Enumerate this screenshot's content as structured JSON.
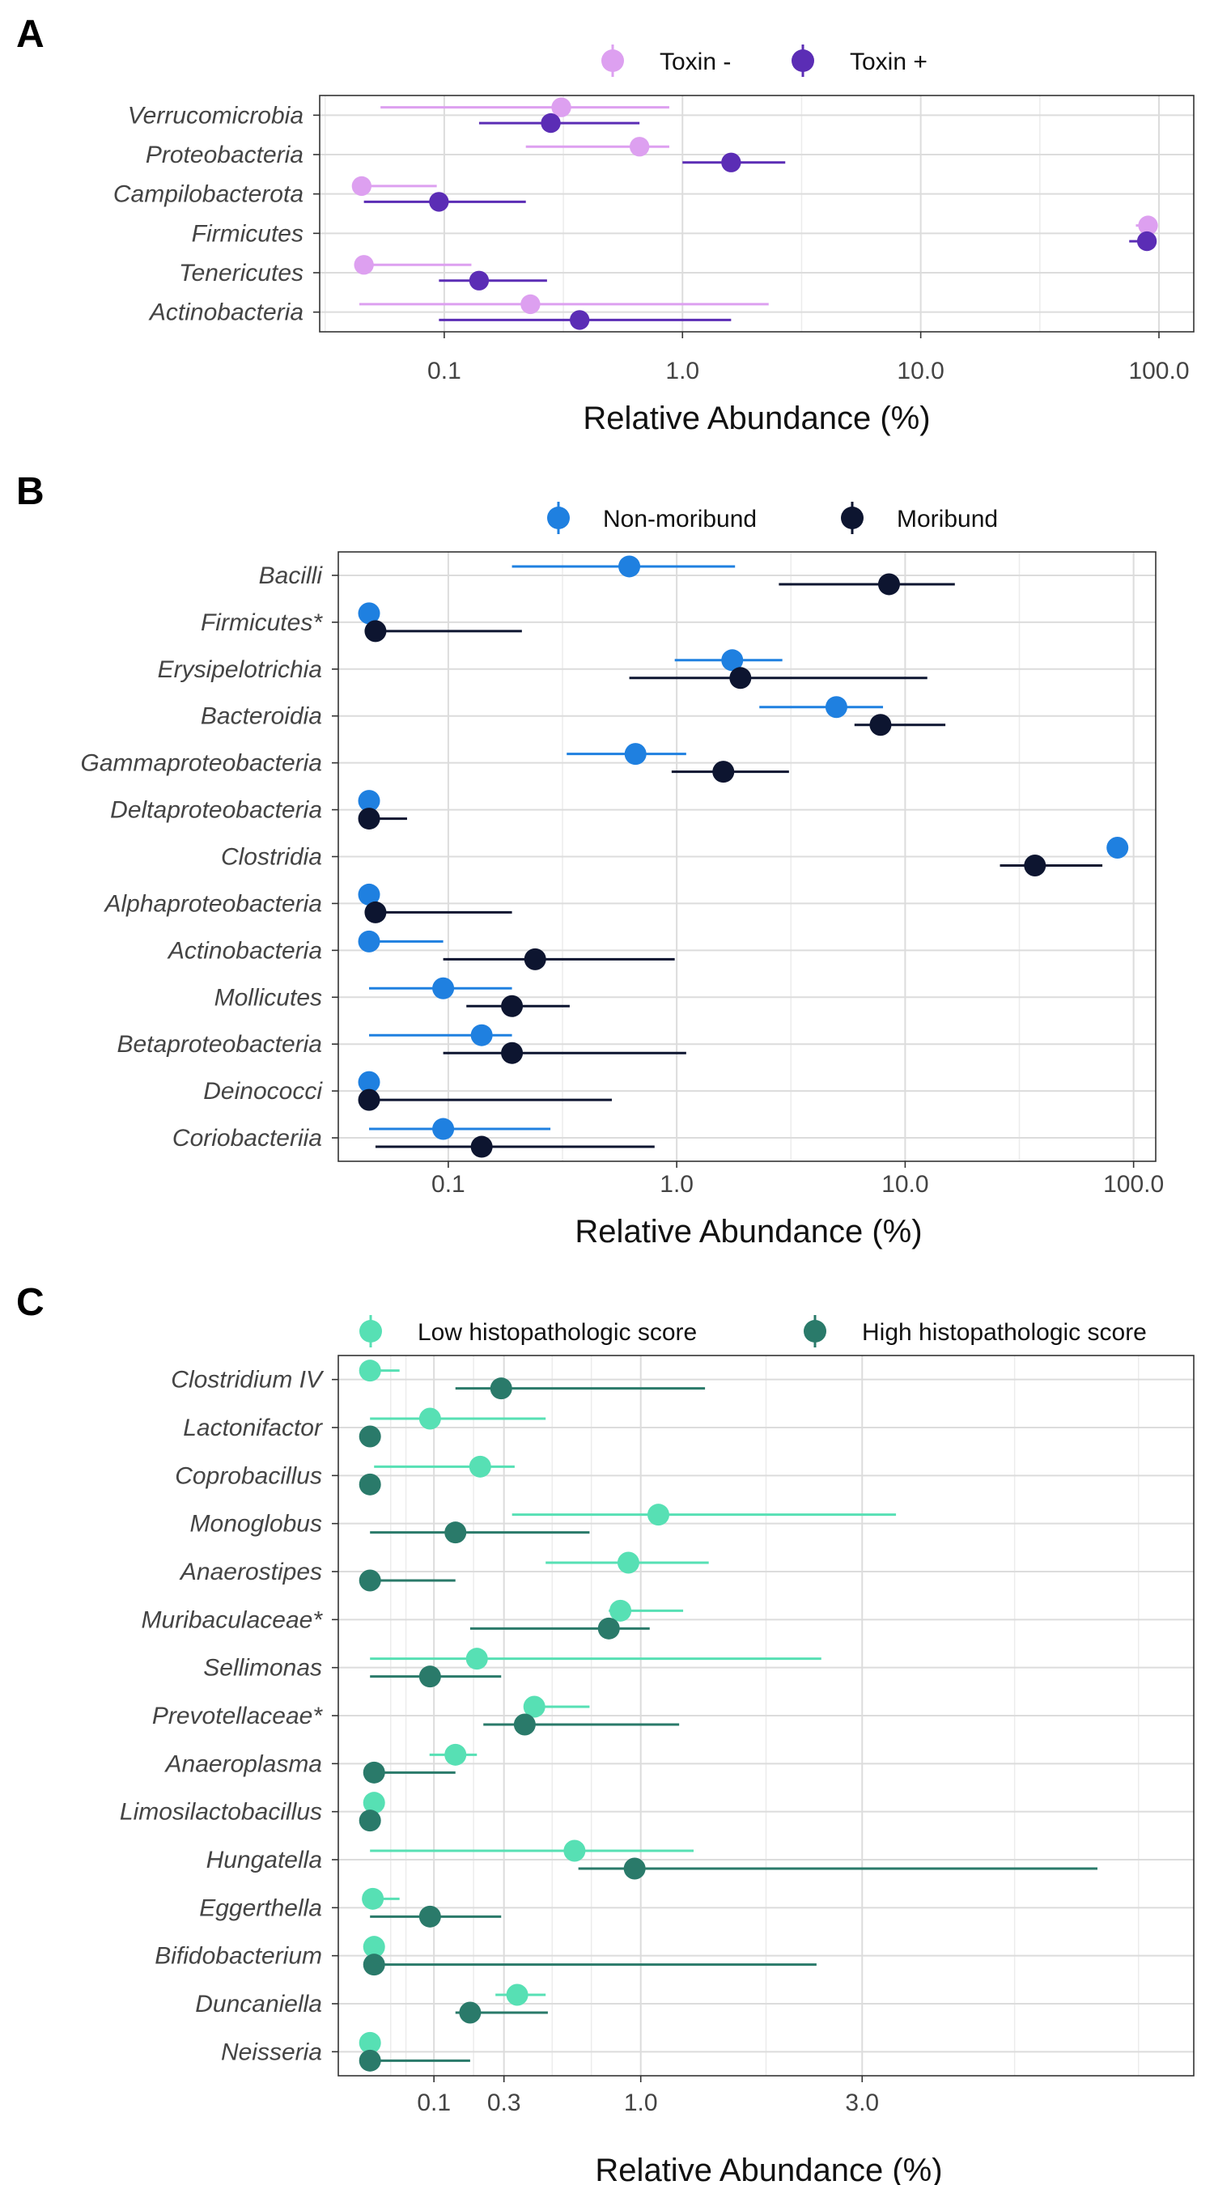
{
  "chart_data": [
    {
      "type": "scatter",
      "panel": "A",
      "xlabel": "Relative Abundance (%)",
      "xscale": "log",
      "xlim": [
        0.03,
        140
      ],
      "xticks": [
        0.1,
        1,
        10,
        100
      ],
      "xtick_labels": [
        "0.1",
        "1.0",
        "10.0",
        "100.0"
      ],
      "grid": true,
      "legend_position": "top",
      "categories": [
        "Verrucomicrobia",
        "Proteobacteria",
        "Campilobacterota",
        "Firmicutes",
        "Tenericutes",
        "Actinobacteria"
      ],
      "series": [
        {
          "name": "Toxin -",
          "color": "#dda0f0",
          "values": [
            0.31,
            0.66,
            0.045,
            90,
            0.046,
            0.23
          ],
          "lower": [
            0.054,
            0.22,
            0.045,
            80,
            0.046,
            0.044
          ],
          "upper": [
            0.88,
            0.88,
            0.093,
            92,
            0.13,
            2.3
          ]
        },
        {
          "name": "Toxin +",
          "color": "#5b2db5",
          "values": [
            0.28,
            1.6,
            0.095,
            89,
            0.14,
            0.37
          ],
          "lower": [
            0.14,
            1.0,
            0.046,
            75,
            0.095,
            0.095
          ],
          "upper": [
            0.66,
            2.7,
            0.22,
            90,
            0.27,
            1.6
          ]
        }
      ]
    },
    {
      "type": "scatter",
      "panel": "B",
      "xlabel": "Relative Abundance (%)",
      "xscale": "log",
      "xlim": [
        0.033,
        125
      ],
      "xticks": [
        0.1,
        1,
        10,
        100
      ],
      "xtick_labels": [
        "0.1",
        "1.0",
        "10.0",
        "100.0"
      ],
      "grid": true,
      "legend_position": "top",
      "categories": [
        "Bacilli",
        "Firmicutes*",
        "Erysipelotrichia",
        "Bacteroidia",
        "Gammaproteobacteria",
        "Deltaproteobacteria",
        "Clostridia",
        "Alphaproteobacteria",
        "Actinobacteria",
        "Mollicutes",
        "Betaproteobacteria",
        "Deinococci",
        "Coriobacteriia"
      ],
      "series": [
        {
          "name": "Non-moribund",
          "color": "#1f80e0",
          "values": [
            0.62,
            0.045,
            1.75,
            5.0,
            0.66,
            0.045,
            85,
            0.045,
            0.045,
            0.095,
            0.14,
            0.045,
            0.095
          ],
          "lower": [
            0.19,
            0.045,
            0.98,
            2.3,
            0.33,
            0.045,
            80,
            0.045,
            0.045,
            0.045,
            0.045,
            0.045,
            0.045
          ],
          "upper": [
            1.8,
            0.045,
            2.9,
            8.0,
            1.1,
            0.045,
            87,
            0.045,
            0.095,
            0.19,
            0.19,
            0.045,
            0.28
          ]
        },
        {
          "name": "Moribund",
          "color": "#0d1530",
          "values": [
            8.5,
            0.048,
            1.9,
            7.8,
            1.6,
            0.045,
            37,
            0.048,
            0.24,
            0.19,
            0.19,
            0.045,
            0.14
          ],
          "lower": [
            2.8,
            0.048,
            0.62,
            6.0,
            0.95,
            0.045,
            26,
            0.048,
            0.095,
            0.12,
            0.095,
            0.045,
            0.048
          ],
          "upper": [
            16.5,
            0.21,
            12.5,
            15.0,
            3.1,
            0.066,
            73,
            0.19,
            0.98,
            0.34,
            1.1,
            0.52,
            0.8
          ]
        }
      ]
    },
    {
      "type": "scatter",
      "panel": "C",
      "xlabel": "Relative Abundance (%)",
      "xscale": "sqrt",
      "xlim": [
        0.0,
        8.0
      ],
      "xticks": [
        0.1,
        0.3,
        1,
        3
      ],
      "xtick_labels": [
        "0.1",
        "0.3",
        "1.0",
        "3.0"
      ],
      "grid": true,
      "legend_position": "top",
      "categories": [
        "Clostridium IV",
        "Lactonifactor",
        "Coprobacillus",
        "Monoglobus",
        "Anaerostipes",
        "Muribaculaceae*",
        "Sellimonas",
        "Prevotellaceae*",
        "Anaeroplasma",
        "Limosilactobacillus",
        "Hungatella",
        "Eggerthella",
        "Bifidobacterium",
        "Duncaniella",
        "Neisseria"
      ],
      "series": [
        {
          "name": "Low histopathologic score",
          "color": "#57e0b4",
          "values": [
            0.011,
            0.092,
            0.22,
            1.12,
            0.92,
            0.87,
            0.21,
            0.42,
            0.15,
            0.014,
            0.61,
            0.013,
            0.014,
            0.35,
            0.011
          ],
          "lower": [
            0.011,
            0.011,
            0.014,
            0.33,
            0.47,
            0.8,
            0.011,
            0.38,
            0.091,
            0.014,
            0.011,
            0.013,
            0.014,
            0.27,
            0.011
          ],
          "upper": [
            0.041,
            0.47,
            0.34,
            3.4,
            1.5,
            1.3,
            2.55,
            0.69,
            0.21,
            0.014,
            1.38,
            0.041,
            0.014,
            0.47,
            0.011
          ]
        },
        {
          "name": "High histopathologic score",
          "color": "#2a7a6a",
          "values": [
            0.29,
            0.011,
            0.011,
            0.15,
            0.011,
            0.8,
            0.092,
            0.38,
            0.014,
            0.011,
            0.96,
            0.092,
            0.014,
            0.19,
            0.011
          ],
          "lower": [
            0.15,
            0.011,
            0.011,
            0.011,
            0.011,
            0.19,
            0.011,
            0.23,
            0.014,
            0.011,
            0.63,
            0.011,
            0.014,
            0.15,
            0.011
          ],
          "upper": [
            1.47,
            0.011,
            0.011,
            0.69,
            0.15,
            1.06,
            0.29,
            1.27,
            0.15,
            0.011,
            6.3,
            0.29,
            2.5,
            0.48,
            0.19
          ]
        }
      ]
    }
  ]
}
